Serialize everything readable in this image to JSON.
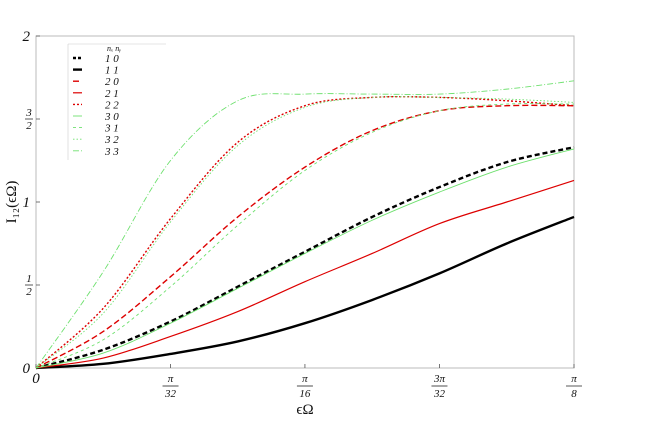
{
  "chart_data": {
    "type": "line",
    "title": "",
    "xlabel": "ϵΩ",
    "ylabel": "I₁₂(ϵΩ)",
    "xlim": [
      0,
      0.3927
    ],
    "ylim": [
      0,
      2
    ],
    "grid": false,
    "legend_placement": "top-left",
    "x_ticks": [
      {
        "value": 0,
        "num": "0",
        "den": ""
      },
      {
        "value": 0.0982,
        "num": "π",
        "den": "32"
      },
      {
        "value": 0.1963,
        "num": "π",
        "den": "16"
      },
      {
        "value": 0.2945,
        "num": "3π",
        "den": "32"
      },
      {
        "value": 0.3927,
        "num": "π",
        "den": "8"
      }
    ],
    "y_ticks": [
      {
        "value": 0,
        "num": "0",
        "den": ""
      },
      {
        "value": 0.5,
        "num": "1",
        "den": "2"
      },
      {
        "value": 1,
        "num": "1",
        "den": ""
      },
      {
        "value": 1.5,
        "num": "3",
        "den": "2"
      },
      {
        "value": 2,
        "num": "2",
        "den": ""
      }
    ],
    "legend_header": "nₓ nᵧ",
    "x": [
      0,
      0.0491,
      0.0982,
      0.1473,
      0.1963,
      0.2454,
      0.2945,
      0.3436,
      0.3927
    ],
    "series": [
      {
        "name": "1 0",
        "color": "#000000",
        "dash": "5,3",
        "width": 2.4,
        "values": [
          0,
          0.11,
          0.28,
          0.49,
          0.7,
          0.91,
          1.09,
          1.24,
          1.33
        ]
      },
      {
        "name": "1 1",
        "color": "#000000",
        "dash": "",
        "width": 2.4,
        "values": [
          0,
          0.025,
          0.085,
          0.16,
          0.27,
          0.41,
          0.57,
          0.75,
          0.91
        ]
      },
      {
        "name": "2 0",
        "color": "#dd0000",
        "dash": "6,3",
        "width": 1.4,
        "values": [
          0,
          0.22,
          0.55,
          0.91,
          1.21,
          1.43,
          1.55,
          1.58,
          1.58
        ]
      },
      {
        "name": "2 1",
        "color": "#dd0000",
        "dash": "",
        "width": 1.2,
        "values": [
          0,
          0.06,
          0.19,
          0.34,
          0.52,
          0.69,
          0.87,
          1.0,
          1.13
        ]
      },
      {
        "name": "2 2",
        "color": "#dd0000",
        "dash": "2,2",
        "width": 1.4,
        "values": [
          0,
          0.36,
          0.9,
          1.36,
          1.58,
          1.63,
          1.63,
          1.61,
          1.58
        ]
      },
      {
        "name": "3 0",
        "color": "#6ee06e",
        "dash": "",
        "width": 0.9,
        "values": [
          0,
          0.09,
          0.27,
          0.48,
          0.69,
          0.89,
          1.06,
          1.21,
          1.32
        ]
      },
      {
        "name": "3 1",
        "color": "#6ee06e",
        "dash": "3,3",
        "width": 0.9,
        "values": [
          0,
          0.17,
          0.49,
          0.86,
          1.19,
          1.42,
          1.55,
          1.59,
          1.59
        ]
      },
      {
        "name": "3 2",
        "color": "#6ee06e",
        "dash": "1.5,2",
        "width": 0.9,
        "values": [
          0,
          0.33,
          0.88,
          1.34,
          1.57,
          1.63,
          1.63,
          1.62,
          1.6
        ]
      },
      {
        "name": "3 3",
        "color": "#6ee06e",
        "dash": "6,2,1,2",
        "width": 0.9,
        "values": [
          0,
          0.58,
          1.25,
          1.61,
          1.65,
          1.65,
          1.65,
          1.68,
          1.73
        ]
      }
    ]
  }
}
